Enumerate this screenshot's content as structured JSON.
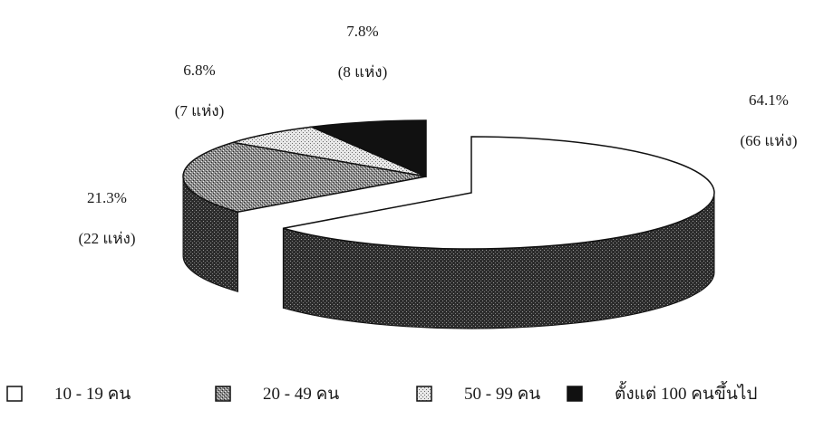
{
  "chart_data": {
    "type": "pie",
    "title": "",
    "exploded_slice": "10 - 19 คน",
    "legend_position": "bottom",
    "slices": [
      {
        "label": "10 - 19 คน",
        "percent": 64.1,
        "count_label": "(66 แห่ง)",
        "percent_label": "64.1%",
        "fill": "#ffffff",
        "pattern": "none"
      },
      {
        "label": "20 - 49 คน",
        "percent": 21.3,
        "count_label": "(22 แห่ง)",
        "percent_label": "21.3%",
        "fill": "#9a9a9a",
        "pattern": "dense-gray"
      },
      {
        "label": "50 - 99 คน",
        "percent": 6.8,
        "count_label": "(7 แห่ง)",
        "percent_label": "6.8%",
        "fill": "#d8d8d8",
        "pattern": "light-gray"
      },
      {
        "label": "ตั้งแต่ 100 คนขึ้นไป",
        "percent": 7.8,
        "count_label": "(8 แห่ง)",
        "percent_label": "7.8%",
        "fill": "#111111",
        "pattern": "solid-black"
      }
    ]
  }
}
